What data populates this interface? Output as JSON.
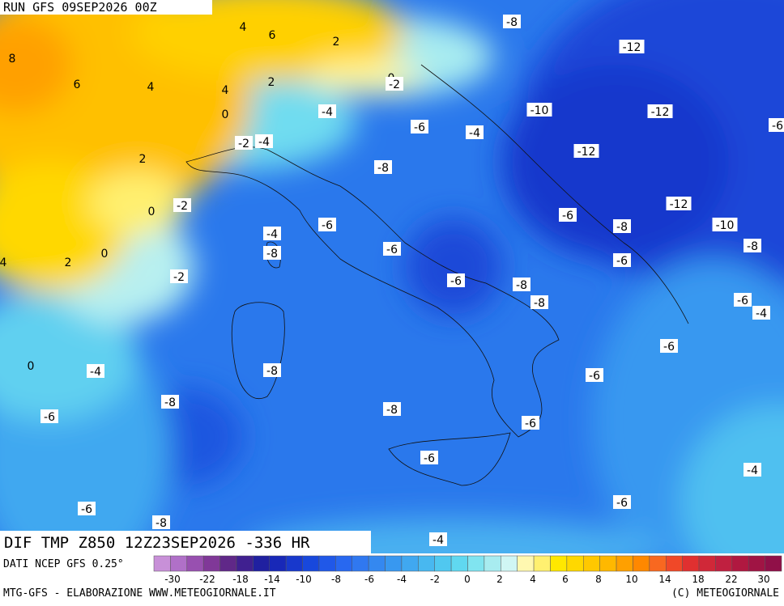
{
  "header": {
    "run": "RUN GFS 09SEP2026 00Z"
  },
  "map": {
    "title": "DIF TMP Z850 12Z23SEP2026 -336 HR",
    "contour_labels": [
      "-8",
      "-12",
      "4",
      "6",
      "2",
      "8",
      "6",
      "4",
      "4",
      "2",
      "0",
      "-2",
      "-10",
      "-12",
      "-4",
      "0",
      "-6",
      "-6",
      "-4",
      "-2",
      "-4",
      "-12",
      "2",
      "-8",
      "0",
      "-2",
      "-12",
      "-6",
      "-8",
      "-10",
      "-6",
      "-4",
      "4",
      "2",
      "0",
      "-8",
      "-6",
      "-8",
      "-6",
      "-2",
      "-6",
      "-8",
      "-8",
      "-6",
      "-4",
      "-6",
      "0",
      "-4",
      "-8",
      "-6",
      "-8",
      "-8",
      "-6",
      "-6",
      "-6",
      "-4",
      "-6",
      "-6",
      "-8",
      "-4"
    ]
  },
  "colorbar": {
    "ticks": [
      -30,
      -22,
      -18,
      -14,
      -10,
      -8,
      -6,
      -4,
      -2,
      0,
      2,
      4,
      6,
      8,
      10,
      14,
      18,
      22,
      30
    ]
  },
  "footer": {
    "source": "DATI NCEP GFS 0.25°",
    "credit": "MTG-GFS - ELABORAZIONE WWW.METEOGIORNALE.IT",
    "copyright": "(C) METEOGIORNALE"
  }
}
